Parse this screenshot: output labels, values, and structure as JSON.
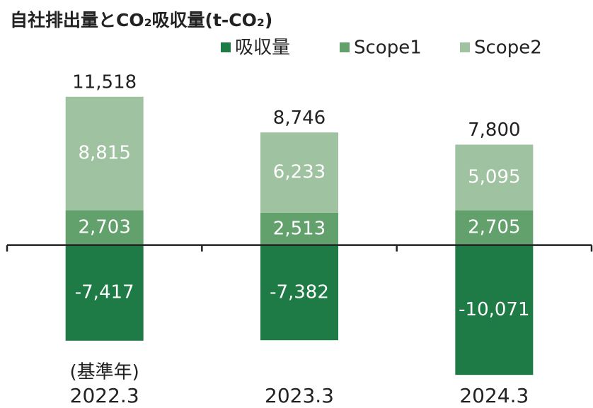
{
  "chart_data": {
    "type": "stacked_bar",
    "title": "自社排出量とCO₂吸収量(t-CO₂)",
    "categories": [
      "2022.3",
      "2023.3",
      "2024.3"
    ],
    "category_note": "(基準年)",
    "series": [
      {
        "name": "吸収量",
        "color": "#1e7b45",
        "values": [
          -7417,
          -7382,
          -10071
        ],
        "value_labels": [
          "-7,417",
          "-7,382",
          "-10,071"
        ]
      },
      {
        "name": "Scope1",
        "color": "#62a06c",
        "values": [
          2703,
          2513,
          2705
        ],
        "value_labels": [
          "2,703",
          "2,513",
          "2,705"
        ]
      },
      {
        "name": "Scope2",
        "color": "#9fc3a1",
        "values": [
          8815,
          6233,
          5095
        ],
        "value_labels": [
          "8,815",
          "6,233",
          "5,095"
        ]
      }
    ],
    "totals": [
      11518,
      8746,
      7800
    ],
    "totals_labels": [
      "11,518",
      "8,746",
      "7,800"
    ],
    "ylim": [
      -10500,
      12000
    ],
    "legend": "top-right"
  }
}
